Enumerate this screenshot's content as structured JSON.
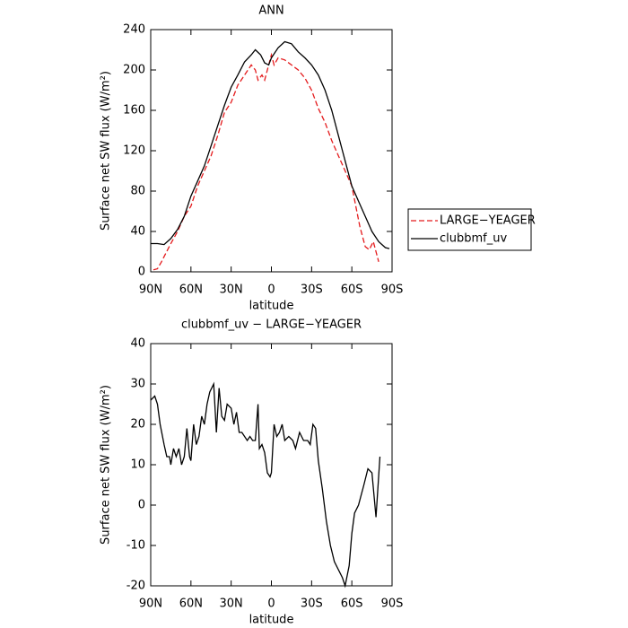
{
  "chart_data": [
    {
      "type": "line",
      "title": "ANN",
      "xlabel": "latitude",
      "ylabel": "Surface net SW flux (W/m²)",
      "xlim": [
        90,
        -90
      ],
      "xticks": [
        {
          "value": 90,
          "label": "90N"
        },
        {
          "value": 60,
          "label": "60N"
        },
        {
          "value": 30,
          "label": "30N"
        },
        0,
        {
          "value": -30,
          "label": "30S"
        },
        {
          "value": -60,
          "label": "60S"
        },
        {
          "value": -90,
          "label": "90S"
        }
      ],
      "ylim": [
        0,
        240
      ],
      "yticks": [
        0,
        40,
        80,
        120,
        160,
        200,
        240
      ],
      "legend": "right",
      "series": [
        {
          "name": "LARGE−YEAGER",
          "color": "#e41a1c",
          "linestyle": "dashed",
          "x": [
            88,
            85,
            82,
            80,
            75,
            70,
            65,
            60,
            55,
            50,
            45,
            40,
            35,
            30,
            25,
            20,
            15,
            12,
            10,
            7,
            5,
            2,
            0,
            -2,
            -5,
            -10,
            -15,
            -20,
            -25,
            -30,
            -35,
            -40,
            -45,
            -50,
            -55,
            -60,
            -63,
            -66,
            -70,
            -73,
            -76,
            -78,
            -80
          ],
          "values": [
            2,
            3,
            10,
            15,
            28,
            40,
            55,
            65,
            85,
            100,
            115,
            135,
            158,
            168,
            185,
            195,
            205,
            200,
            190,
            195,
            190,
            205,
            215,
            205,
            212,
            210,
            205,
            200,
            192,
            180,
            162,
            148,
            130,
            115,
            100,
            85,
            65,
            45,
            25,
            22,
            30,
            20,
            10
          ]
        },
        {
          "name": "clubbmf_uv",
          "color": "#000000",
          "linestyle": "solid",
          "x": [
            90,
            85,
            80,
            75,
            70,
            65,
            60,
            55,
            50,
            45,
            40,
            35,
            30,
            25,
            20,
            15,
            12,
            8,
            5,
            2,
            0,
            -5,
            -10,
            -15,
            -20,
            -25,
            -30,
            -35,
            -40,
            -45,
            -50,
            -55,
            -60,
            -65,
            -70,
            -75,
            -80,
            -85,
            -88
          ],
          "values": [
            28,
            28,
            27,
            33,
            42,
            55,
            75,
            90,
            105,
            125,
            145,
            165,
            183,
            195,
            208,
            215,
            220,
            215,
            207,
            205,
            212,
            222,
            228,
            226,
            218,
            212,
            205,
            195,
            180,
            160,
            135,
            110,
            85,
            70,
            55,
            40,
            30,
            24,
            23
          ]
        }
      ]
    },
    {
      "type": "line",
      "title": "clubbmf_uv − LARGE−YEAGER",
      "xlabel": "latitude",
      "ylabel": "Surface net SW flux (W/m²)",
      "xlim": [
        90,
        -90
      ],
      "xticks": [
        {
          "value": 90,
          "label": "90N"
        },
        {
          "value": 60,
          "label": "60N"
        },
        {
          "value": 30,
          "label": "30N"
        },
        0,
        {
          "value": -30,
          "label": "30S"
        },
        {
          "value": -60,
          "label": "60S"
        },
        {
          "value": -90,
          "label": "90S"
        }
      ],
      "ylim": [
        -20,
        40
      ],
      "yticks": [
        -20,
        -10,
        0,
        10,
        20,
        30,
        40
      ],
      "series": [
        {
          "color": "#000000",
          "linestyle": "solid",
          "x": [
            90,
            87,
            85,
            83,
            80,
            78,
            76,
            75,
            73,
            71,
            69,
            67,
            65,
            63,
            61,
            60,
            58,
            56,
            54,
            52,
            50,
            48,
            46,
            43,
            41,
            39,
            37,
            35,
            33,
            30,
            28,
            26,
            24,
            22,
            20,
            18,
            16,
            14,
            12,
            10,
            9,
            7,
            5,
            3,
            1,
            0,
            -2,
            -4,
            -6,
            -8,
            -10,
            -13,
            -16,
            -18,
            -21,
            -24,
            -27,
            -29,
            -31,
            -33,
            -35,
            -38,
            -41,
            -44,
            -47,
            -50,
            -53,
            -55,
            -58,
            -60,
            -62,
            -65,
            -69,
            -72,
            -75,
            -78,
            -81
          ],
          "values": [
            26,
            27,
            25,
            20,
            15,
            12,
            12,
            10,
            14,
            12,
            14,
            10,
            12,
            19,
            12,
            11,
            20,
            15,
            17,
            22,
            20,
            25,
            28,
            30,
            18,
            29,
            22,
            21,
            25,
            24,
            20,
            23,
            18,
            18,
            17,
            16,
            17,
            16,
            16,
            25,
            14,
            15,
            13,
            8,
            7,
            8,
            20,
            17,
            18,
            20,
            16,
            17,
            16,
            14,
            18,
            16,
            16,
            15,
            20,
            19,
            11,
            4,
            -4,
            -10,
            -14,
            -16,
            -18,
            -20,
            -15,
            -7,
            -2,
            0,
            5,
            9,
            8,
            -3,
            12
          ]
        }
      ]
    }
  ]
}
